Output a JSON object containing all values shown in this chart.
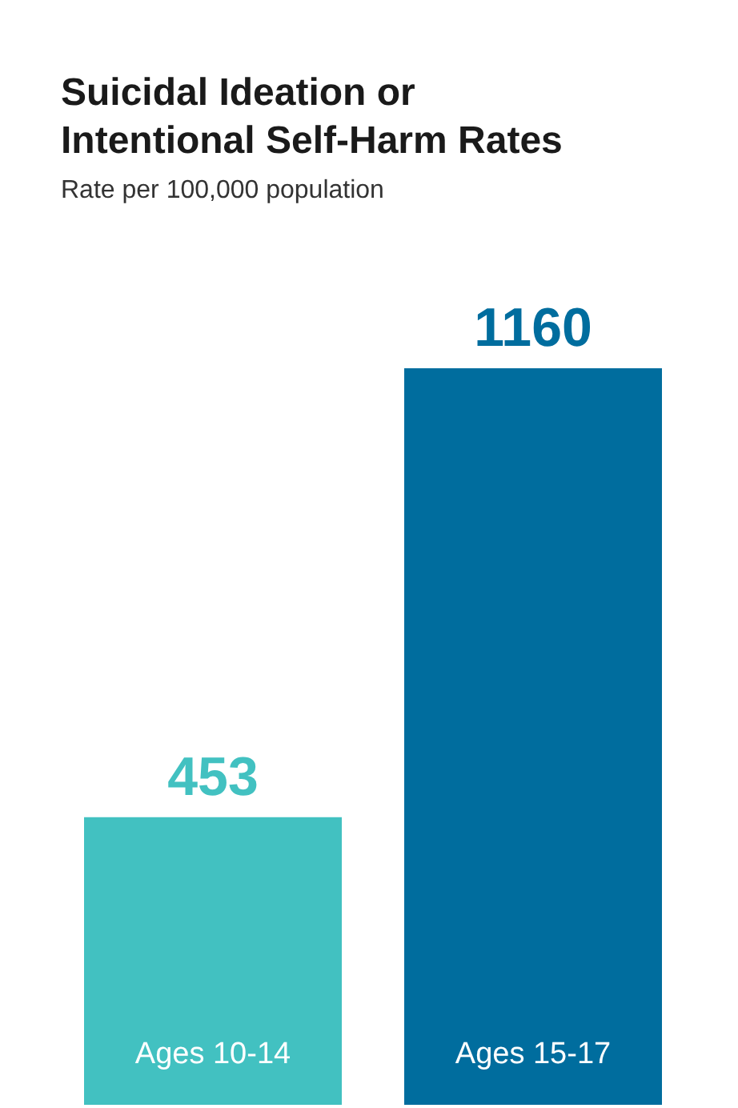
{
  "chart_data": {
    "type": "bar",
    "title": "Suicidal Ideation or Intentional Self-Harm Rates",
    "subtitle": "Rate per 100,000 population",
    "categories": [
      "Ages 10-14",
      "Ages 15-17"
    ],
    "values": [
      453,
      1160
    ],
    "colors": [
      "#42c1c1",
      "#006d9e"
    ],
    "data_labels": true,
    "grid": false
  }
}
